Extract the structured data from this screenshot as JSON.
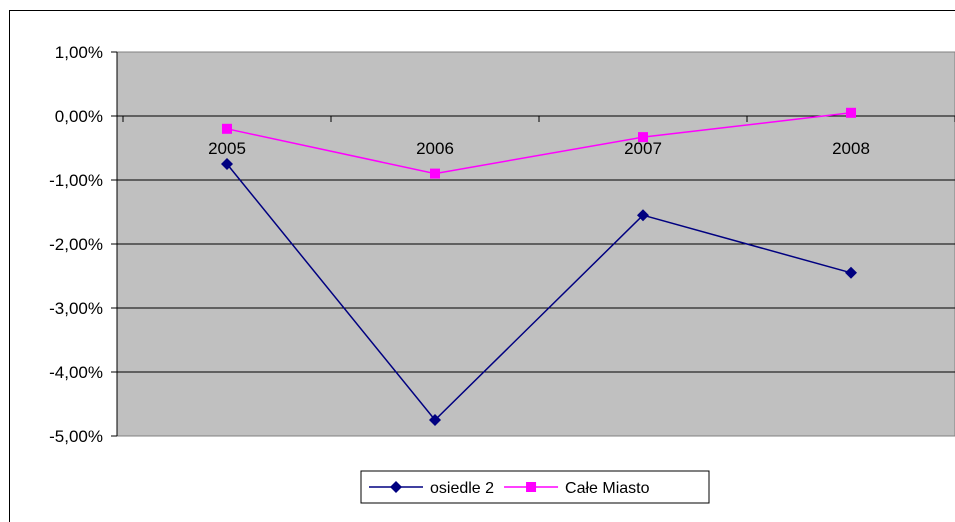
{
  "chart_data": {
    "type": "line",
    "title": "",
    "categories": [
      "2005",
      "2006",
      "2007",
      "2008"
    ],
    "ylim": [
      -0.05,
      0.01
    ],
    "y_ticks": [
      0.01,
      0.0,
      -0.01,
      -0.02,
      -0.03,
      -0.04,
      -0.05
    ],
    "y_tick_labels": [
      "1,00%",
      "0,00%",
      "-1,00%",
      "-2,00%",
      "-3,00%",
      "-4,00%",
      "-5,00%"
    ],
    "grid": true,
    "legend_position": "bottom",
    "plot_background": "#c0c0c0",
    "series": [
      {
        "name": "osiedle 2",
        "values": [
          -0.0075,
          -0.0475,
          -0.0155,
          -0.0245
        ],
        "color": "#000080",
        "marker": "diamond"
      },
      {
        "name": "Całe Miasto",
        "values": [
          -0.002,
          -0.009,
          -0.0033,
          0.0005
        ],
        "color": "#ff00ff",
        "marker": "square"
      }
    ]
  }
}
